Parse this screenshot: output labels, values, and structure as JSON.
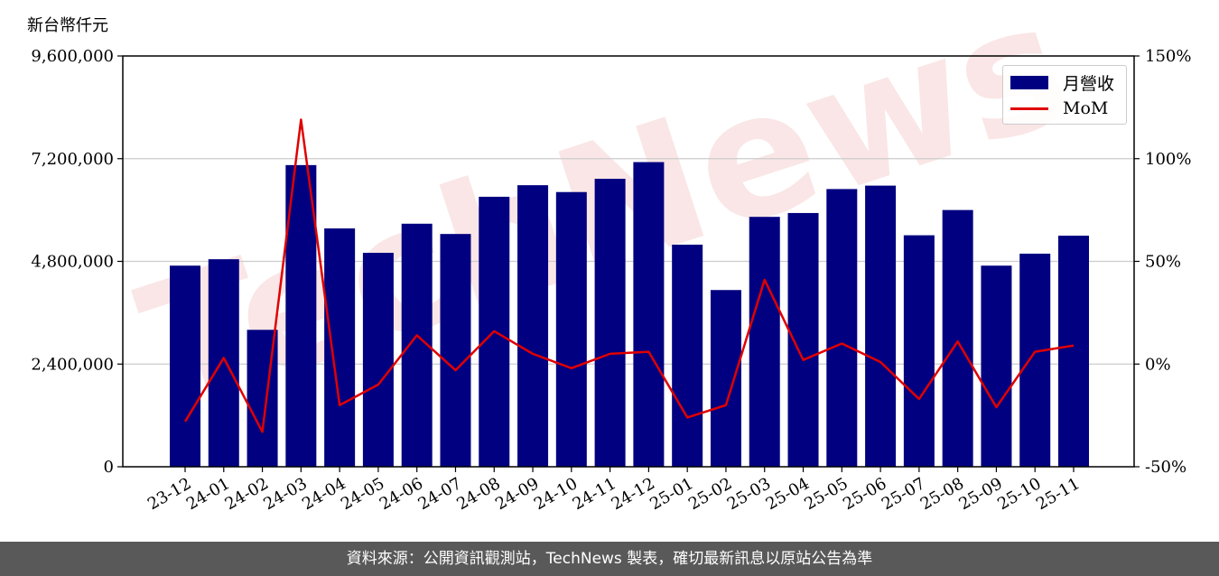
{
  "y_unit_label": "新台幣仟元",
  "footer_text": "資料來源：公開資訊觀測站，TechNews 製表，確切最新訊息以原站公告為準",
  "colors": {
    "bar": "#000080",
    "line": "#e00000",
    "watermark": "#f2b8b8"
  },
  "chart_data": {
    "type": "bar",
    "categories": [
      "23-12",
      "24-01",
      "24-02",
      "24-03",
      "24-04",
      "24-05",
      "24-06",
      "24-07",
      "24-08",
      "24-09",
      "24-10",
      "24-11",
      "24-12",
      "25-01",
      "25-02",
      "25-03",
      "25-04",
      "25-05",
      "25-06",
      "25-07",
      "25-08",
      "25-09",
      "25-10",
      "25-11"
    ],
    "series": [
      {
        "name": "月營收",
        "type": "bar",
        "axis": "left",
        "values": [
          4700000,
          4850000,
          3200000,
          7050000,
          5570000,
          5000000,
          5680000,
          5440000,
          6310000,
          6580000,
          6420000,
          6730000,
          7120000,
          5190000,
          4130000,
          5840000,
          5930000,
          6490000,
          6570000,
          5410000,
          6000000,
          4700000,
          4980000,
          5400000
        ]
      },
      {
        "name": "MoM",
        "type": "line",
        "axis": "right",
        "values": [
          -28,
          3,
          -33,
          119,
          -20,
          -10,
          14,
          -3,
          16,
          5,
          -2,
          5,
          6,
          -26,
          -20,
          41,
          2,
          10,
          1,
          -17,
          11,
          -21,
          6,
          9
        ]
      }
    ],
    "left_axis": {
      "min": 0,
      "max": 9600000,
      "ticks": [
        0,
        2400000,
        4800000,
        7200000,
        9600000
      ],
      "tick_labels": [
        "0",
        "2,400,000",
        "4,800,000",
        "7,200,000",
        "9,600,000"
      ]
    },
    "right_axis": {
      "min": -50,
      "max": 150,
      "ticks": [
        -50,
        0,
        50,
        100,
        150
      ],
      "tick_labels": [
        "-50%",
        "0%",
        "50%",
        "100%",
        "150%"
      ]
    },
    "grid": true,
    "legend_position": "top-right",
    "watermark_text": "TechNews"
  }
}
